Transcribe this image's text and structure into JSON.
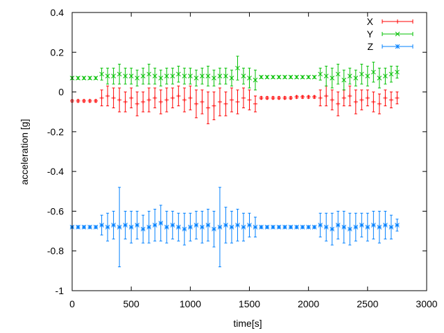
{
  "chart_data": {
    "type": "scatter",
    "style": "points with y error bars",
    "xlabel": "time[s]",
    "ylabel": "acceleration [g]",
    "xlim": [
      0,
      3000
    ],
    "ylim": [
      -1,
      0.4
    ],
    "xticks": [
      0,
      500,
      1000,
      1500,
      2000,
      2500,
      3000
    ],
    "yticks": [
      -1,
      -0.8,
      -0.6,
      -0.4,
      -0.2,
      0,
      0.2,
      0.4
    ],
    "ytick_labels": [
      "-1",
      "-0.8",
      "-0.6",
      "-0.4",
      "-0.2",
      "0",
      "0.2",
      "0.4"
    ],
    "grid": false,
    "legend_position": "top-right",
    "x": [
      0,
      50,
      100,
      150,
      200,
      250,
      300,
      350,
      400,
      450,
      500,
      550,
      600,
      650,
      700,
      750,
      800,
      850,
      900,
      950,
      1000,
      1050,
      1100,
      1150,
      1200,
      1250,
      1300,
      1350,
      1400,
      1450,
      1500,
      1550,
      1600,
      1650,
      1700,
      1750,
      1800,
      1850,
      1900,
      1950,
      2000,
      2050,
      2100,
      2150,
      2200,
      2250,
      2300,
      2350,
      2400,
      2450,
      2500,
      2550,
      2600,
      2650,
      2700,
      2750
    ],
    "series": [
      {
        "name": "X",
        "color": "#ff0000",
        "marker": "plus",
        "values": [
          -0.045,
          -0.045,
          -0.045,
          -0.045,
          -0.045,
          -0.03,
          -0.02,
          -0.03,
          -0.04,
          -0.05,
          -0.03,
          -0.06,
          -0.05,
          -0.04,
          -0.03,
          -0.05,
          -0.04,
          -0.03,
          -0.02,
          -0.04,
          -0.03,
          -0.06,
          -0.05,
          -0.08,
          -0.07,
          -0.05,
          -0.06,
          -0.04,
          -0.05,
          -0.03,
          -0.04,
          -0.06,
          -0.03,
          -0.03,
          -0.03,
          -0.03,
          -0.03,
          -0.03,
          -0.025,
          -0.025,
          -0.025,
          -0.025,
          -0.03,
          -0.02,
          -0.04,
          -0.06,
          -0.03,
          -0.02,
          -0.05,
          -0.04,
          -0.03,
          -0.05,
          -0.06,
          -0.03,
          -0.04,
          -0.03
        ],
        "errors": [
          0.006,
          0.006,
          0.006,
          0.006,
          0.006,
          0.04,
          0.05,
          0.05,
          0.06,
          0.05,
          0.05,
          0.06,
          0.05,
          0.06,
          0.05,
          0.06,
          0.06,
          0.05,
          0.05,
          0.06,
          0.06,
          0.07,
          0.06,
          0.08,
          0.07,
          0.07,
          0.06,
          0.06,
          0.06,
          0.05,
          0.05,
          0.04,
          0.006,
          0.006,
          0.006,
          0.006,
          0.006,
          0.006,
          0.006,
          0.006,
          0.006,
          0.006,
          0.04,
          0.05,
          0.05,
          0.06,
          0.04,
          0.05,
          0.06,
          0.05,
          0.04,
          0.05,
          0.05,
          0.04,
          0.04,
          0.03
        ]
      },
      {
        "name": "Y",
        "color": "#00c000",
        "marker": "cross",
        "values": [
          0.07,
          0.07,
          0.07,
          0.07,
          0.07,
          0.09,
          0.08,
          0.08,
          0.09,
          0.08,
          0.08,
          0.07,
          0.08,
          0.09,
          0.08,
          0.07,
          0.08,
          0.08,
          0.09,
          0.08,
          0.08,
          0.07,
          0.08,
          0.08,
          0.07,
          0.08,
          0.08,
          0.07,
          0.12,
          0.08,
          0.07,
          0.06,
          0.075,
          0.075,
          0.075,
          0.075,
          0.075,
          0.075,
          0.075,
          0.075,
          0.075,
          0.075,
          0.09,
          0.08,
          0.07,
          0.09,
          0.06,
          0.08,
          0.07,
          0.09,
          0.08,
          0.1,
          0.07,
          0.08,
          0.09,
          0.1
        ],
        "errors": [
          0.006,
          0.006,
          0.006,
          0.006,
          0.006,
          0.03,
          0.04,
          0.04,
          0.05,
          0.04,
          0.04,
          0.04,
          0.04,
          0.05,
          0.04,
          0.04,
          0.04,
          0.04,
          0.04,
          0.04,
          0.04,
          0.04,
          0.04,
          0.05,
          0.04,
          0.04,
          0.04,
          0.04,
          0.06,
          0.04,
          0.05,
          0.05,
          0.006,
          0.006,
          0.006,
          0.006,
          0.006,
          0.006,
          0.006,
          0.006,
          0.006,
          0.006,
          0.03,
          0.05,
          0.05,
          0.05,
          0.05,
          0.04,
          0.04,
          0.05,
          0.05,
          0.05,
          0.05,
          0.04,
          0.04,
          0.03
        ]
      },
      {
        "name": "Z",
        "color": "#0080ff",
        "marker": "star",
        "values": [
          -0.68,
          -0.68,
          -0.68,
          -0.68,
          -0.68,
          -0.67,
          -0.68,
          -0.67,
          -0.68,
          -0.67,
          -0.68,
          -0.67,
          -0.69,
          -0.68,
          -0.67,
          -0.66,
          -0.68,
          -0.67,
          -0.68,
          -0.69,
          -0.68,
          -0.67,
          -0.68,
          -0.67,
          -0.69,
          -0.68,
          -0.67,
          -0.68,
          -0.67,
          -0.68,
          -0.67,
          -0.68,
          -0.68,
          -0.68,
          -0.68,
          -0.68,
          -0.68,
          -0.68,
          -0.68,
          -0.68,
          -0.68,
          -0.68,
          -0.67,
          -0.68,
          -0.69,
          -0.67,
          -0.68,
          -0.69,
          -0.68,
          -0.67,
          -0.68,
          -0.67,
          -0.68,
          -0.67,
          -0.68,
          -0.67
        ],
        "errors": [
          0.006,
          0.006,
          0.006,
          0.006,
          0.006,
          0.05,
          0.07,
          0.07,
          0.2,
          0.07,
          0.08,
          0.07,
          0.07,
          0.08,
          0.08,
          0.09,
          0.08,
          0.07,
          0.07,
          0.08,
          0.07,
          0.07,
          0.08,
          0.08,
          0.09,
          0.2,
          0.09,
          0.08,
          0.08,
          0.07,
          0.06,
          0.05,
          0.006,
          0.006,
          0.006,
          0.006,
          0.006,
          0.006,
          0.006,
          0.006,
          0.006,
          0.006,
          0.06,
          0.07,
          0.08,
          0.07,
          0.08,
          0.08,
          0.07,
          0.06,
          0.07,
          0.07,
          0.08,
          0.07,
          0.06,
          0.03
        ]
      }
    ]
  }
}
